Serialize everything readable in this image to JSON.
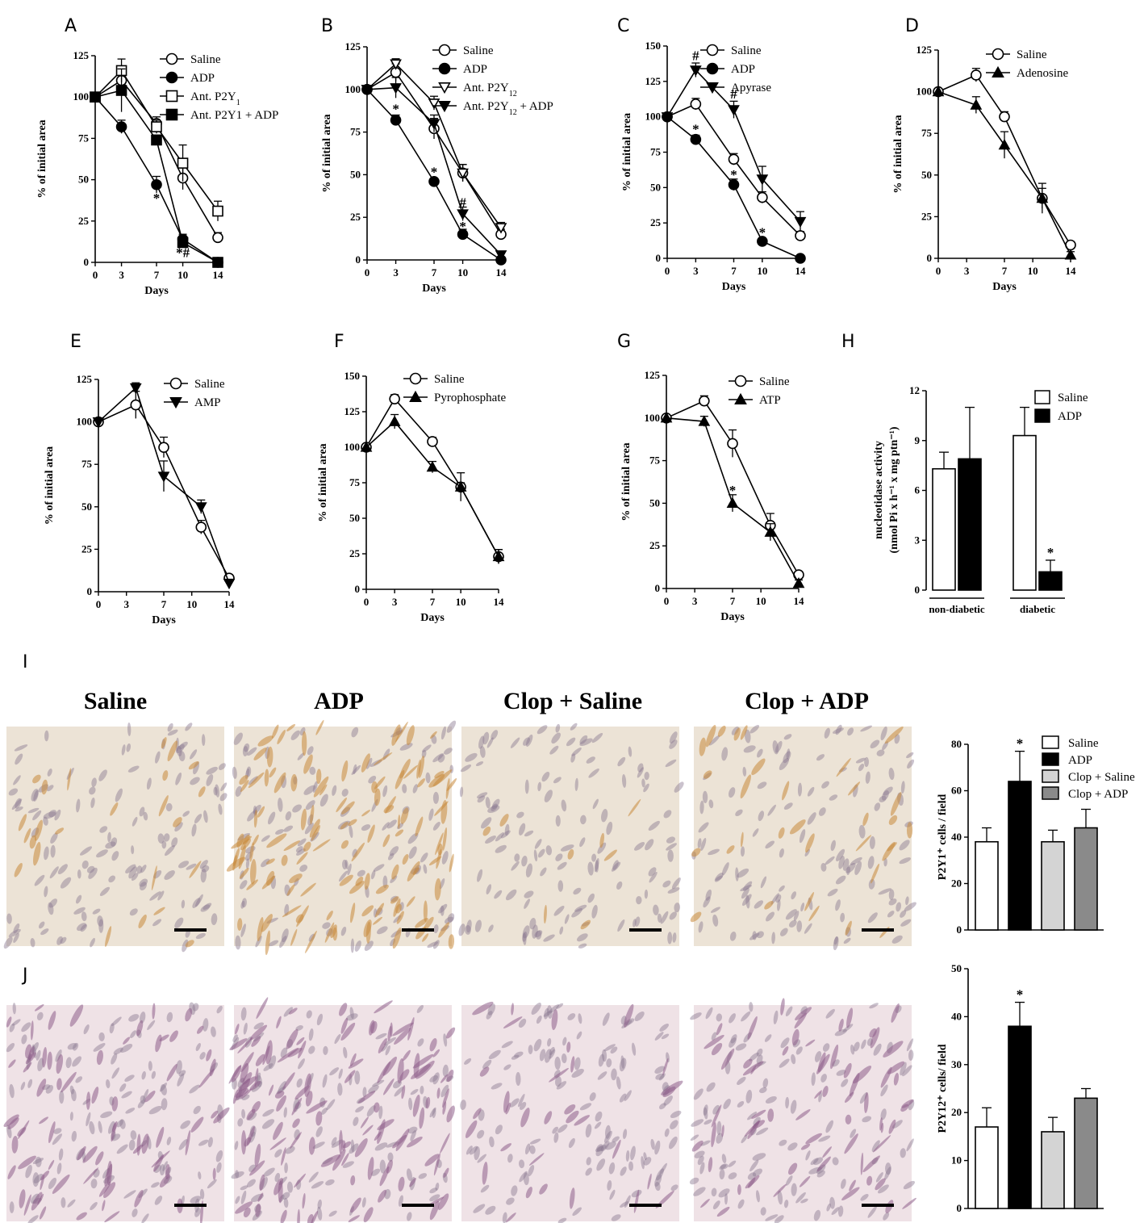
{
  "panel_letters": {
    "A": "A",
    "B": "B",
    "C": "C",
    "D": "D",
    "E": "E",
    "F": "F",
    "G": "G",
    "H": "H",
    "I": "I",
    "J": "J"
  },
  "micrograph_titles": [
    "Saline",
    "ADP",
    "Clop + Saline",
    "Clop + ADP"
  ],
  "colors": {
    "ink": "#000000",
    "open_marker": "#ffffff",
    "clop_saline_bar": "#d4d4d4",
    "clop_adp_bar": "#8a8a8a",
    "i_tissue_background": "#ece3d6",
    "i_stain_brown": "#c88a3c",
    "j_tissue_background": "#efe2e6",
    "j_stain_purple": "#8e5f8a"
  },
  "chart_data": [
    {
      "id": "A",
      "type": "line",
      "xlabel": "Days",
      "ylabel": "% of initial area",
      "xlim": [
        0,
        14
      ],
      "ylim": [
        0,
        125
      ],
      "x_ticks": [
        0,
        3,
        7,
        10,
        14
      ],
      "y_ticks": [
        0,
        25,
        50,
        75,
        100,
        125
      ],
      "legend_position": "top-right",
      "series": [
        {
          "name": "Saline",
          "marker": "circle-open",
          "x": [
            0,
            3,
            7,
            10,
            14
          ],
          "y": [
            100,
            110,
            84,
            51,
            15
          ],
          "err": [
            0,
            5,
            4,
            7,
            3
          ]
        },
        {
          "name": "ADP",
          "marker": "circle-filled",
          "x": [
            0,
            3,
            7,
            10,
            14
          ],
          "y": [
            100,
            82,
            47,
            14,
            0
          ],
          "err": [
            0,
            4,
            5,
            3,
            1
          ]
        },
        {
          "name": "Ant. P2Y",
          "name_sub": "1",
          "marker": "square-open",
          "x": [
            0,
            3,
            7,
            10,
            14
          ],
          "y": [
            100,
            116,
            82,
            60,
            31
          ],
          "err": [
            0,
            7,
            4,
            11,
            6
          ]
        },
        {
          "name": "Ant. P2Y1 + ADP",
          "marker": "square-filled",
          "x": [
            0,
            3,
            7,
            10,
            14
          ],
          "y": [
            100,
            104,
            74,
            12,
            0
          ],
          "err": [
            0,
            13,
            3,
            3,
            1
          ]
        }
      ],
      "annotations": [
        {
          "text": "*",
          "x": 3,
          "y": 85,
          "anchor": "below"
        },
        {
          "text": "*",
          "x": 7,
          "y": 45,
          "anchor": "below"
        },
        {
          "text": "*#",
          "x": 10,
          "y": 12,
          "anchor": "below"
        }
      ]
    },
    {
      "id": "B",
      "type": "line",
      "xlabel": "Days",
      "ylabel": "% of initial area",
      "xlim": [
        0,
        14
      ],
      "ylim": [
        0,
        125
      ],
      "x_ticks": [
        0,
        3,
        7,
        10,
        14
      ],
      "y_ticks": [
        0,
        25,
        50,
        75,
        100,
        125
      ],
      "legend_position": "top-right",
      "series": [
        {
          "name": "Saline",
          "marker": "circle-open",
          "x": [
            0,
            3,
            7,
            10,
            14
          ],
          "y": [
            100,
            110,
            77,
            51,
            15
          ],
          "err": [
            0,
            5,
            6,
            5,
            3
          ]
        },
        {
          "name": "ADP",
          "marker": "circle-filled",
          "x": [
            0,
            3,
            7,
            10,
            14
          ],
          "y": [
            100,
            82,
            46,
            15,
            0
          ],
          "err": [
            0,
            3,
            2,
            3,
            1
          ]
        },
        {
          "name": "Ant. P2Y",
          "name_sub": "12",
          "marker": "triangle-down-open",
          "x": [
            0,
            3,
            7,
            10,
            14
          ],
          "y": [
            100,
            115,
            92,
            51,
            19
          ],
          "err": [
            0,
            3,
            4,
            5,
            3
          ]
        },
        {
          "name": "Ant. P2Y",
          "name_sub": "12",
          "name_suffix": " + ADP",
          "marker": "triangle-down-filled",
          "x": [
            0,
            3,
            7,
            10,
            14
          ],
          "y": [
            100,
            101,
            80,
            27,
            3
          ],
          "err": [
            0,
            6,
            5,
            4,
            2
          ]
        }
      ],
      "annotations": [
        {
          "text": "*",
          "x": 3,
          "y": 86,
          "anchor": "above"
        },
        {
          "text": "*",
          "x": 7,
          "y": 49,
          "anchor": "above"
        },
        {
          "text": "#",
          "x": 10,
          "y": 31,
          "anchor": "above"
        },
        {
          "text": "*",
          "x": 10,
          "y": 17,
          "anchor": "above"
        }
      ]
    },
    {
      "id": "C",
      "type": "line",
      "xlabel": "Days",
      "ylabel": "% of initial area",
      "xlim": [
        0,
        14
      ],
      "ylim": [
        0,
        150
      ],
      "x_ticks": [
        0,
        3,
        7,
        10,
        14
      ],
      "y_ticks": [
        0,
        25,
        50,
        75,
        100,
        125,
        150
      ],
      "legend_position": "top-right",
      "series": [
        {
          "name": "Saline",
          "marker": "circle-open",
          "x": [
            0,
            3,
            7,
            10,
            14
          ],
          "y": [
            100,
            109,
            70,
            43,
            16
          ],
          "err": [
            0,
            4,
            4,
            4,
            3
          ]
        },
        {
          "name": "ADP",
          "marker": "circle-filled",
          "x": [
            0,
            3,
            7,
            10,
            14
          ],
          "y": [
            100,
            84,
            52,
            12,
            0
          ],
          "err": [
            0,
            3,
            4,
            2,
            1
          ]
        },
        {
          "name": "Apyrase",
          "marker": "triangle-down-filled",
          "x": [
            0,
            3,
            7,
            10,
            14
          ],
          "y": [
            100,
            133,
            105,
            56,
            26
          ],
          "err": [
            0,
            5,
            6,
            9,
            7
          ]
        }
      ],
      "annotations": [
        {
          "text": "#",
          "x": 3,
          "y": 140,
          "anchor": "above"
        },
        {
          "text": "*",
          "x": 3,
          "y": 88,
          "anchor": "above"
        },
        {
          "text": "#",
          "x": 7,
          "y": 113,
          "anchor": "above"
        },
        {
          "text": "*",
          "x": 7,
          "y": 56,
          "anchor": "above"
        },
        {
          "text": "*",
          "x": 10,
          "y": 15,
          "anchor": "above"
        }
      ]
    },
    {
      "id": "D",
      "type": "line",
      "xlabel": "Days",
      "ylabel": "% of initial area",
      "xlim": [
        0,
        14
      ],
      "ylim": [
        0,
        125
      ],
      "x_ticks": [
        0,
        3,
        7,
        10,
        14
      ],
      "y_ticks": [
        0,
        25,
        50,
        75,
        100,
        125
      ],
      "legend_position": "top-right",
      "series": [
        {
          "name": "Saline",
          "marker": "circle-open",
          "x": [
            0,
            4,
            7,
            11,
            14
          ],
          "y": [
            100,
            110,
            85,
            36,
            8
          ],
          "err": [
            0,
            4,
            3,
            9,
            2
          ]
        },
        {
          "name": "Adenosine",
          "marker": "triangle-up-filled",
          "x": [
            0,
            4,
            7,
            11,
            14
          ],
          "y": [
            100,
            92,
            68,
            36,
            2
          ],
          "err": [
            0,
            5,
            8,
            6,
            2
          ]
        }
      ],
      "annotations": []
    },
    {
      "id": "E",
      "type": "line",
      "xlabel": "Days",
      "ylabel": "% of initial  area",
      "xlim": [
        0,
        14
      ],
      "ylim": [
        0,
        125
      ],
      "x_ticks": [
        0,
        3,
        7,
        10,
        14
      ],
      "y_ticks": [
        0,
        25,
        50,
        75,
        100,
        125
      ],
      "legend_position": "top-right",
      "series": [
        {
          "name": "Saline",
          "marker": "circle-open",
          "x": [
            0,
            4,
            7,
            11,
            14
          ],
          "y": [
            100,
            110,
            85,
            38,
            8
          ],
          "err": [
            0,
            8,
            6,
            4,
            2
          ]
        },
        {
          "name": "AMP",
          "marker": "triangle-down-filled",
          "x": [
            0,
            4,
            7,
            11,
            14
          ],
          "y": [
            100,
            120,
            68,
            50,
            5
          ],
          "err": [
            0,
            3,
            9,
            4,
            2
          ]
        }
      ],
      "annotations": []
    },
    {
      "id": "F",
      "type": "line",
      "xlabel": "Days",
      "ylabel": "% of initial area",
      "xlim": [
        0,
        14
      ],
      "ylim": [
        0,
        150
      ],
      "x_ticks": [
        0,
        3,
        7,
        10,
        14
      ],
      "y_ticks": [
        0,
        25,
        50,
        75,
        100,
        125,
        150
      ],
      "legend_position": "top-right",
      "series": [
        {
          "name": "Saline",
          "marker": "circle-open",
          "x": [
            0,
            3,
            7,
            10,
            14
          ],
          "y": [
            100,
            134,
            104,
            72,
            23
          ],
          "err": [
            0,
            3,
            3,
            10,
            5
          ]
        },
        {
          "name": "Pyrophosphate",
          "marker": "triangle-up-filled",
          "x": [
            0,
            3,
            7,
            10,
            14
          ],
          "y": [
            100,
            118,
            86,
            72,
            23
          ],
          "err": [
            0,
            5,
            4,
            3,
            5
          ]
        }
      ],
      "annotations": []
    },
    {
      "id": "G",
      "type": "line",
      "xlabel": "Days",
      "ylabel": "% of initial area",
      "xlim": [
        0,
        14
      ],
      "ylim": [
        0,
        125
      ],
      "x_ticks": [
        0,
        3,
        7,
        10,
        14
      ],
      "y_ticks": [
        0,
        25,
        50,
        75,
        100,
        125
      ],
      "legend_position": "top-right",
      "series": [
        {
          "name": "Saline",
          "marker": "circle-open",
          "x": [
            0,
            4,
            7,
            11,
            14
          ],
          "y": [
            100,
            110,
            85,
            37,
            8
          ],
          "err": [
            0,
            3,
            8,
            7,
            2
          ]
        },
        {
          "name": "ATP",
          "marker": "triangle-up-filled",
          "x": [
            0,
            4,
            7,
            11,
            14
          ],
          "y": [
            100,
            98,
            50,
            33,
            3
          ],
          "err": [
            0,
            3,
            5,
            5,
            2
          ]
        }
      ],
      "annotations": [
        {
          "text": "*",
          "x": 7,
          "y": 55,
          "anchor": "above"
        }
      ]
    },
    {
      "id": "H",
      "type": "bar",
      "ylabel_line1": "nucleotidase activity",
      "ylabel_line2": "(nmol Pi x h⁻¹ x mg ptn⁻¹)",
      "groups": [
        "non-diabetic",
        "diabetic"
      ],
      "ylim": [
        0,
        12
      ],
      "y_ticks": [
        0,
        3,
        6,
        9,
        12
      ],
      "legend_position": "top-right",
      "series": [
        {
          "name": "Saline",
          "fill": "#ffffff",
          "values": [
            7.3,
            9.3
          ],
          "err": [
            1.0,
            1.7
          ]
        },
        {
          "name": "ADP",
          "fill": "#000000",
          "values": [
            7.9,
            1.1
          ],
          "err": [
            3.1,
            0.7
          ]
        }
      ],
      "annotations": [
        {
          "text": "*",
          "group": 1,
          "series": 1
        }
      ]
    },
    {
      "id": "I",
      "type": "bar",
      "ylabel": "P2Y1⁺ cells / field",
      "ylim": [
        0,
        80
      ],
      "y_ticks": [
        0,
        20,
        40,
        60,
        80
      ],
      "legend_position": "top-right",
      "categories": [
        "Saline",
        "ADP",
        "Clop + Saline",
        "Clop + ADP"
      ],
      "values": [
        38,
        64,
        38,
        44
      ],
      "err": [
        6,
        13,
        5,
        8
      ],
      "fills": [
        "#ffffff",
        "#000000",
        "#d4d4d4",
        "#8a8a8a"
      ],
      "annotations": [
        {
          "text": "*",
          "index": 1
        }
      ]
    },
    {
      "id": "J",
      "type": "bar",
      "ylabel": "P2Y12⁺ cells/ field",
      "ylim": [
        0,
        50
      ],
      "y_ticks": [
        0,
        10,
        20,
        30,
        40,
        50
      ],
      "legend_position": "none",
      "categories": [
        "Saline",
        "ADP",
        "Clop + Saline",
        "Clop + ADP"
      ],
      "values": [
        17,
        38,
        16,
        23
      ],
      "err": [
        4,
        5,
        3,
        2
      ],
      "fills": [
        "#ffffff",
        "#000000",
        "#d4d4d4",
        "#8a8a8a"
      ],
      "annotations": [
        {
          "text": "*",
          "index": 1
        }
      ]
    }
  ]
}
